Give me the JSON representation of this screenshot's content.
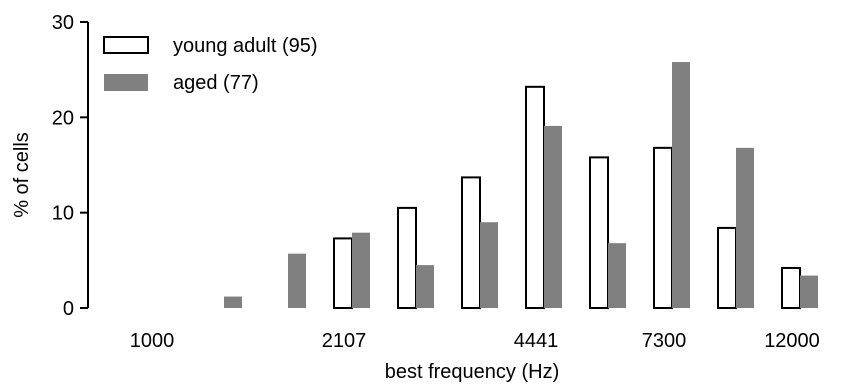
{
  "chart_data": {
    "type": "bar",
    "title": "",
    "xlabel": "best frequency (Hz)",
    "ylabel": "% of cells",
    "ylim": [
      0,
      30
    ],
    "yticks": [
      0,
      10,
      20,
      30
    ],
    "xtick_labels": [
      "1000",
      "2107",
      "4441",
      "7300",
      "12000"
    ],
    "bin_count": 11,
    "xtick_bins": [
      0,
      3,
      6,
      8,
      10
    ],
    "legend_position": "top-left",
    "series": [
      {
        "name": "young adult (95)",
        "style": "hollow",
        "color": "#ffffff",
        "values": [
          0,
          0,
          0,
          7.3,
          10.5,
          13.7,
          23.2,
          15.8,
          16.8,
          8.4,
          4.2
        ]
      },
      {
        "name": "aged (77)",
        "style": "filled",
        "color": "#808080",
        "values": [
          0,
          1.2,
          5.7,
          7.9,
          4.5,
          9.0,
          19.1,
          6.8,
          25.8,
          16.8,
          3.4
        ]
      }
    ]
  }
}
